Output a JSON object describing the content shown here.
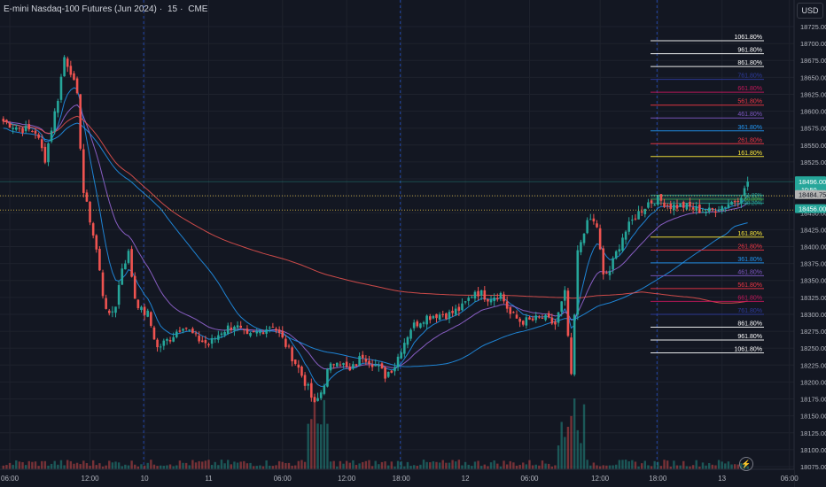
{
  "header": {
    "symbol": "E-mini Nasdaq-100 Futures (Jun 2024)",
    "interval": "15",
    "exchange": "CME",
    "currency_button": "USD"
  },
  "colors": {
    "background": "#131722",
    "grid": "#1e222d",
    "up": "#26a69a",
    "down": "#ef5350",
    "axis_text": "#b2b5be",
    "session_divider": "#2962ff"
  },
  "icons": {
    "flash": "lightning-icon"
  },
  "chart_data": {
    "type": "candlestick",
    "symbol": "E-mini Nasdaq-100 Futures (Jun 2024)",
    "interval": "15",
    "ylim": [
      18065,
      18735
    ],
    "y_ticks": [
      18725,
      18700,
      18675,
      18650,
      18625,
      18600,
      18575,
      18550,
      18525,
      18500,
      18475,
      18450,
      18425,
      18400,
      18375,
      18350,
      18325,
      18300,
      18275,
      18250,
      18225,
      18200,
      18175,
      18150,
      18125,
      18100,
      18075
    ],
    "y_tick_labels": [
      "18725.00",
      "18700.00",
      "18675.00",
      "18650.00",
      "18625.00",
      "18600.00",
      "18575.00",
      "18550.00",
      "18525.00",
      "18500.00",
      "18475.00",
      "18450.00",
      "18425.00",
      "18400.00",
      "18375.00",
      "18350.00",
      "18325.00",
      "18300.00",
      "18275.00",
      "18250.00",
      "18225.00",
      "18200.00",
      "18175.00",
      "18150.00",
      "18125.00",
      "18100.00",
      "18075.00"
    ],
    "x_ticks": [
      {
        "i": 2,
        "label": "06:00"
      },
      {
        "i": 27,
        "label": "12:00"
      },
      {
        "i": 44,
        "label": "10"
      },
      {
        "i": 64,
        "label": "11"
      },
      {
        "i": 87,
        "label": "06:00"
      },
      {
        "i": 107,
        "label": "12:00"
      },
      {
        "i": 124,
        "label": "18:00"
      },
      {
        "i": 144,
        "label": "12"
      },
      {
        "i": 164,
        "label": "06:00"
      },
      {
        "i": 186,
        "label": "12:00"
      },
      {
        "i": 204,
        "label": "18:00"
      },
      {
        "i": 224,
        "label": "13"
      },
      {
        "i": 245,
        "label": "06:00"
      }
    ],
    "session_dividers": [
      44,
      124,
      204
    ],
    "grid": true,
    "candles_keypoints": [
      [
        0,
        18585
      ],
      [
        5,
        18575
      ],
      [
        10,
        18570
      ],
      [
        13,
        18530
      ],
      [
        17,
        18620
      ],
      [
        19,
        18680
      ],
      [
        21,
        18660
      ],
      [
        23,
        18620
      ],
      [
        25,
        18480
      ],
      [
        27,
        18440
      ],
      [
        29,
        18395
      ],
      [
        31,
        18330
      ],
      [
        33,
        18295
      ],
      [
        35,
        18315
      ],
      [
        37,
        18370
      ],
      [
        39,
        18390
      ],
      [
        41,
        18325
      ],
      [
        43,
        18305
      ],
      [
        45,
        18300
      ],
      [
        48,
        18250
      ],
      [
        52,
        18265
      ],
      [
        56,
        18285
      ],
      [
        60,
        18265
      ],
      [
        64,
        18255
      ],
      [
        68,
        18275
      ],
      [
        72,
        18285
      ],
      [
        76,
        18265
      ],
      [
        80,
        18275
      ],
      [
        84,
        18285
      ],
      [
        88,
        18255
      ],
      [
        92,
        18220
      ],
      [
        95,
        18190
      ],
      [
        97,
        18165
      ],
      [
        99,
        18185
      ],
      [
        101,
        18215
      ],
      [
        104,
        18235
      ],
      [
        108,
        18215
      ],
      [
        112,
        18240
      ],
      [
        116,
        18225
      ],
      [
        119,
        18210
      ],
      [
        122,
        18225
      ],
      [
        124,
        18250
      ],
      [
        127,
        18280
      ],
      [
        131,
        18295
      ],
      [
        135,
        18300
      ],
      [
        139,
        18300
      ],
      [
        143,
        18310
      ],
      [
        147,
        18335
      ],
      [
        151,
        18325
      ],
      [
        155,
        18330
      ],
      [
        158,
        18300
      ],
      [
        161,
        18290
      ],
      [
        164,
        18290
      ],
      [
        168,
        18295
      ],
      [
        172,
        18285
      ],
      [
        175,
        18330
      ],
      [
        177,
        18205
      ],
      [
        179,
        18390
      ],
      [
        181,
        18425
      ],
      [
        183,
        18440
      ],
      [
        185,
        18430
      ],
      [
        187,
        18355
      ],
      [
        189,
        18365
      ],
      [
        193,
        18415
      ],
      [
        197,
        18445
      ],
      [
        201,
        18465
      ],
      [
        204,
        18470
      ],
      [
        208,
        18460
      ],
      [
        212,
        18460
      ],
      [
        216,
        18455
      ],
      [
        220,
        18452
      ],
      [
        224,
        18460
      ],
      [
        228,
        18468
      ],
      [
        232,
        18488
      ]
    ],
    "last_price": 18496.0,
    "last_price_label": "18496.00",
    "countdown_label": "10:50",
    "price_lines": [
      {
        "value": 18484.75,
        "label": "18484.75",
        "color": "#b3b3b3"
      },
      {
        "value": 18456.0,
        "label": "18456.00",
        "color": "#26a69a"
      }
    ],
    "dotted_levels": [
      18475,
      18454
    ],
    "fib_upper": [
      {
        "label": "1061.80%",
        "value": 18704,
        "color": "#ffffff"
      },
      {
        "label": "961.80%",
        "value": 18685,
        "color": "#ffffff"
      },
      {
        "label": "861.80%",
        "value": 18666,
        "color": "#ffffff"
      },
      {
        "label": "761.80%",
        "value": 18647,
        "color": "#2e3b9e"
      },
      {
        "label": "661.80%",
        "value": 18628,
        "color": "#c2185b"
      },
      {
        "label": "561.80%",
        "value": 18609,
        "color": "#f23645"
      },
      {
        "label": "461.80%",
        "value": 18590,
        "color": "#7e57c2"
      },
      {
        "label": "361.80%",
        "value": 18571,
        "color": "#2196f3"
      },
      {
        "label": "261.80%",
        "value": 18552,
        "color": "#f23645"
      },
      {
        "label": "161.80%",
        "value": 18533,
        "color": "#ffeb3b"
      }
    ],
    "fib_lower": [
      {
        "label": "161.80%",
        "value": 18414,
        "color": "#ffeb3b"
      },
      {
        "label": "261.80%",
        "value": 18395,
        "color": "#f23645"
      },
      {
        "label": "361.80%",
        "value": 18376,
        "color": "#2196f3"
      },
      {
        "label": "461.80%",
        "value": 18357,
        "color": "#7e57c2"
      },
      {
        "label": "561.80%",
        "value": 18338,
        "color": "#f23645"
      },
      {
        "label": "661.80%",
        "value": 18319,
        "color": "#c2185b"
      },
      {
        "label": "761.80%",
        "value": 18300,
        "color": "#2e3b9e"
      },
      {
        "label": "861.80%",
        "value": 18281,
        "color": "#ffffff"
      },
      {
        "label": "961.80%",
        "value": 18262,
        "color": "#ffffff"
      },
      {
        "label": "1061.80%",
        "value": 18243,
        "color": "#ffffff"
      }
    ],
    "fib_mid_labels": [
      {
        "label": "61.80%",
        "value": 18476,
        "color": "#26a69a"
      },
      {
        "label": "50.00%",
        "value": 18470,
        "color": "#4caf50"
      },
      {
        "label": "38.20%",
        "value": 18464,
        "color": "#26a69a"
      }
    ]
  }
}
